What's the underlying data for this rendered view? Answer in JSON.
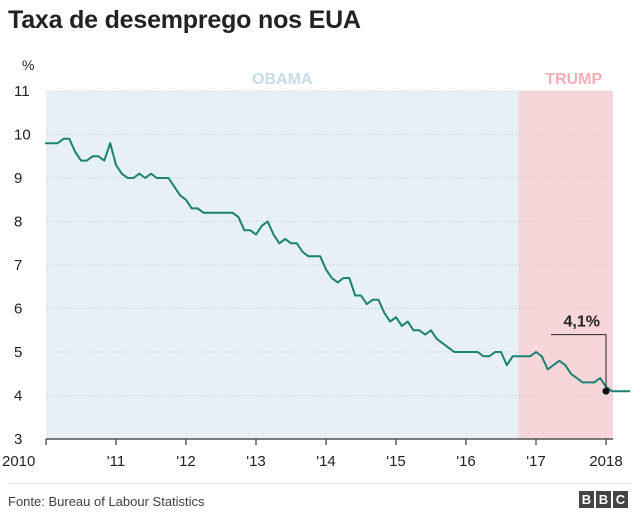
{
  "title": "Taxa de desemprego nos EUA",
  "source": "Fonte: Bureau of Labour Statistics",
  "logo": [
    "B",
    "B",
    "C"
  ],
  "colors": {
    "line": "#1a8173",
    "obama_band": "#e6f0f6",
    "obama_label": "#c6dce9",
    "trump_band": "#f7d6d9",
    "trump_label": "#f2adb6",
    "axis": "#333333",
    "grid": "#cfcfcf"
  },
  "chart_data": {
    "type": "line",
    "title": "Taxa de desemprego nos EUA",
    "ylabel": "%",
    "xlabel": "",
    "ylim": [
      3,
      11
    ],
    "xlim": [
      2010,
      2018.1
    ],
    "y_ticks": [
      "3",
      "4",
      "5",
      "6",
      "7",
      "8",
      "9",
      "10",
      "11"
    ],
    "x_ticks": [
      {
        "value": 2010,
        "label": "2010"
      },
      {
        "value": 2011,
        "label": "'11"
      },
      {
        "value": 2012,
        "label": "'12"
      },
      {
        "value": 2013,
        "label": "'13"
      },
      {
        "value": 2014,
        "label": "'14"
      },
      {
        "value": 2015,
        "label": "'15"
      },
      {
        "value": 2016,
        "label": "'16"
      },
      {
        "value": 2017,
        "label": "'17"
      },
      {
        "value": 2018,
        "label": "2018"
      }
    ],
    "regions": [
      {
        "name": "obama",
        "label": "OBAMA",
        "from": 2010,
        "to": 2016.75
      },
      {
        "name": "trump",
        "label": "TRUMP",
        "from": 2016.75,
        "to": 2018.1
      }
    ],
    "annotation": {
      "x": 2018.0,
      "y": 4.1,
      "text": "4,1%"
    },
    "series": [
      {
        "name": "Taxa de desemprego",
        "x_start": 2010,
        "step_months": 1,
        "values": [
          9.8,
          9.8,
          9.8,
          9.9,
          9.9,
          9.6,
          9.4,
          9.4,
          9.5,
          9.5,
          9.4,
          9.8,
          9.3,
          9.1,
          9.0,
          9.0,
          9.1,
          9.0,
          9.1,
          9.0,
          9.0,
          9.0,
          8.8,
          8.6,
          8.5,
          8.3,
          8.3,
          8.2,
          8.2,
          8.2,
          8.2,
          8.2,
          8.2,
          8.1,
          7.8,
          7.8,
          7.7,
          7.9,
          8.0,
          7.7,
          7.5,
          7.6,
          7.5,
          7.5,
          7.3,
          7.2,
          7.2,
          7.2,
          6.9,
          6.7,
          6.6,
          6.7,
          6.7,
          6.3,
          6.3,
          6.1,
          6.2,
          6.2,
          5.9,
          5.7,
          5.8,
          5.6,
          5.7,
          5.5,
          5.5,
          5.4,
          5.5,
          5.3,
          5.2,
          5.1,
          5.0,
          5.0,
          5.0,
          5.0,
          5.0,
          4.9,
          4.9,
          5.0,
          5.0,
          4.7,
          4.9,
          4.9,
          4.9,
          4.9,
          5.0,
          4.9,
          4.6,
          4.7,
          4.8,
          4.7,
          4.5,
          4.4,
          4.3,
          4.3,
          4.3,
          4.4,
          4.2,
          4.1,
          4.1,
          4.1,
          4.1
        ]
      }
    ]
  }
}
